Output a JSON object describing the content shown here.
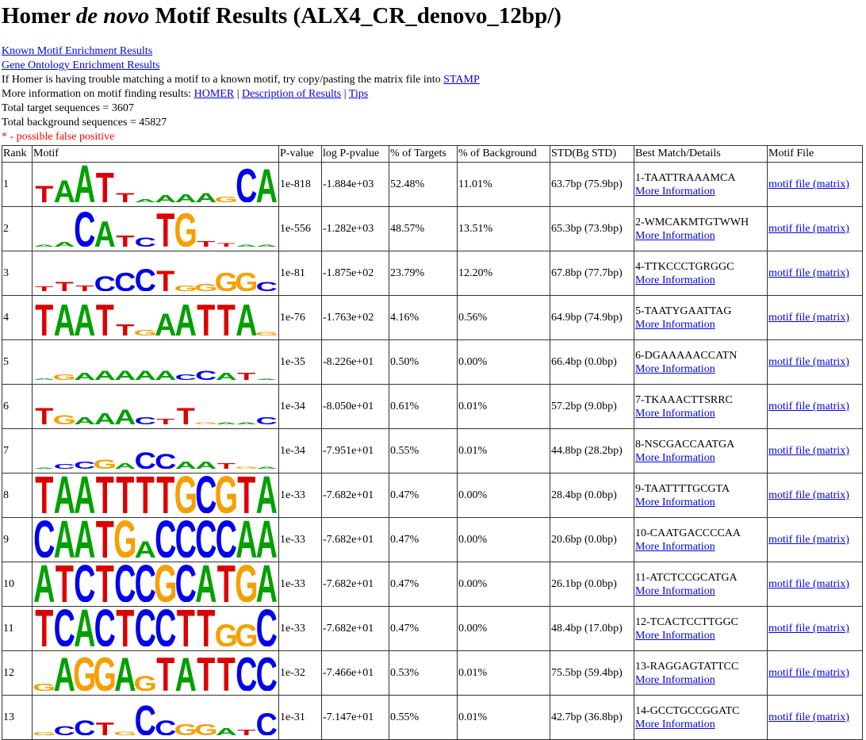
{
  "title_pre": "Homer ",
  "title_em": "de novo",
  "title_post": " Motif Results (ALX4_CR_denovo_12bp/)",
  "links": {
    "known": "Known Motif Enrichment Results",
    "go": "Gene Ontology Enrichment Results"
  },
  "stamp_text": "If Homer is having trouble matching a motif to a known motif, try copy/pasting the matrix file into ",
  "stamp_link": "STAMP",
  "more_info_text": "More information on motif finding results: ",
  "homer_link": "HOMER",
  "desc_link": "Description of Results",
  "tips_link": "Tips",
  "sep": " | ",
  "total_target": "Total target sequences = 3607",
  "total_background": "Total background sequences = 45827",
  "false_positive": "* - possible false positive",
  "headers": [
    "Rank",
    "Motif",
    "P-value",
    "log P-pvalue",
    "% of Targets",
    "% of Background",
    "STD(Bg STD)",
    "Best Match/Details",
    "Motif File"
  ],
  "more_information_label": "More Information",
  "motif_file_label": "motif file (matrix)",
  "colors": {
    "A": "#00a000",
    "C": "#0000ee",
    "G": "#f5a000",
    "T": "#dd0000"
  },
  "rows": [
    {
      "rank": "1",
      "pvalue": "1e-818",
      "logp": "-1.884e+03",
      "targets": "52.48%",
      "background": "11.01%",
      "std": "63.7bp (75.9bp)",
      "match": "1-TAATTRAAAMCA",
      "logo": [
        [
          "T",
          0.45
        ],
        [
          "A",
          0.6
        ],
        [
          "A",
          1.0
        ],
        [
          "T",
          0.8
        ],
        [
          "T",
          0.25
        ],
        [
          "A",
          0.08
        ],
        [
          "A",
          0.2
        ],
        [
          "A",
          0.22
        ],
        [
          "A",
          0.25
        ],
        [
          "G",
          0.15
        ],
        [
          "C",
          0.9
        ],
        [
          "A",
          0.9
        ]
      ]
    },
    {
      "rank": "2",
      "pvalue": "1e-556",
      "logp": "-1.282e+03",
      "targets": "48.57%",
      "background": "13.51%",
      "std": "65.3bp (73.9bp)",
      "match": "2-WMCAKMTGTWWH",
      "logo": [
        [
          "A",
          0.06
        ],
        [
          "A",
          0.12
        ],
        [
          "C",
          0.95
        ],
        [
          "A",
          0.7
        ],
        [
          "T",
          0.3
        ],
        [
          "C",
          0.25
        ],
        [
          "T",
          0.9
        ],
        [
          "G",
          0.9
        ],
        [
          "T",
          0.15
        ],
        [
          "T",
          0.1
        ],
        [
          "A",
          0.05
        ],
        [
          "A",
          0.05
        ]
      ]
    },
    {
      "rank": "3",
      "pvalue": "1e-81",
      "logp": "-1.875e+02",
      "targets": "23.79%",
      "background": "12.20%",
      "std": "67.8bp (77.7bp)",
      "match": "4-TTKCCCTGRGGC",
      "logo": [
        [
          "T",
          0.12
        ],
        [
          "T",
          0.25
        ],
        [
          "T",
          0.15
        ],
        [
          "C",
          0.4
        ],
        [
          "C",
          0.5
        ],
        [
          "C",
          0.6
        ],
        [
          "T",
          0.55
        ],
        [
          "G",
          0.15
        ],
        [
          "G",
          0.2
        ],
        [
          "G",
          0.5
        ],
        [
          "G",
          0.5
        ],
        [
          "C",
          0.25
        ]
      ]
    },
    {
      "rank": "4",
      "pvalue": "1e-76",
      "logp": "-1.763e+02",
      "targets": "4.16%",
      "background": "0.56%",
      "std": "64.9bp (74.9bp)",
      "match": "5-TAATYGAATTAG",
      "logo": [
        [
          "T",
          0.85
        ],
        [
          "A",
          0.85
        ],
        [
          "A",
          0.85
        ],
        [
          "T",
          0.85
        ],
        [
          "T",
          0.3
        ],
        [
          "G",
          0.15
        ],
        [
          "A",
          0.6
        ],
        [
          "A",
          0.85
        ],
        [
          "T",
          0.85
        ],
        [
          "T",
          0.85
        ],
        [
          "A",
          0.85
        ],
        [
          "G",
          0.1
        ]
      ]
    },
    {
      "rank": "5",
      "pvalue": "1e-35",
      "logp": "-8.226e+01",
      "targets": "0.50%",
      "background": "0.00%",
      "std": "66.4bp (0.0bp)",
      "match": "6-DGAAAAACCATN",
      "logo": [
        [
          "A",
          0.04
        ],
        [
          "G",
          0.15
        ],
        [
          "A",
          0.2
        ],
        [
          "A",
          0.25
        ],
        [
          "A",
          0.25
        ],
        [
          "A",
          0.25
        ],
        [
          "A",
          0.25
        ],
        [
          "C",
          0.15
        ],
        [
          "C",
          0.25
        ],
        [
          "A",
          0.2
        ],
        [
          "T",
          0.2
        ],
        [
          "A",
          0.02
        ]
      ]
    },
    {
      "rank": "6",
      "pvalue": "1e-34",
      "logp": "-8.050e+01",
      "targets": "0.61%",
      "background": "0.01%",
      "std": "57.2bp (9.0bp)",
      "match": "7-TKAAACTTSRRC",
      "logo": [
        [
          "T",
          0.45
        ],
        [
          "G",
          0.25
        ],
        [
          "A",
          0.2
        ],
        [
          "A",
          0.3
        ],
        [
          "A",
          0.4
        ],
        [
          "C",
          0.2
        ],
        [
          "T",
          0.15
        ],
        [
          "T",
          0.45
        ],
        [
          "G",
          0.05
        ],
        [
          "A",
          0.05
        ],
        [
          "A",
          0.05
        ],
        [
          "C",
          0.2
        ]
      ]
    },
    {
      "rank": "7",
      "pvalue": "1e-34",
      "logp": "-7.951e+01",
      "targets": "0.55%",
      "background": "0.01%",
      "std": "44.8bp (28.2bp)",
      "match": "8-NSCGACCAATGA",
      "logo": [
        [
          "A",
          0.03
        ],
        [
          "C",
          0.12
        ],
        [
          "C",
          0.2
        ],
        [
          "G",
          0.25
        ],
        [
          "A",
          0.15
        ],
        [
          "C",
          0.45
        ],
        [
          "C",
          0.4
        ],
        [
          "A",
          0.2
        ],
        [
          "A",
          0.2
        ],
        [
          "T",
          0.15
        ],
        [
          "G",
          0.05
        ],
        [
          "A",
          0.05
        ]
      ]
    },
    {
      "rank": "8",
      "pvalue": "1e-33",
      "logp": "-7.682e+01",
      "targets": "0.47%",
      "background": "0.00%",
      "std": "28.4bp (0.0bp)",
      "match": "9-TAATTTTGCGTA",
      "logo": [
        [
          "T",
          1
        ],
        [
          "A",
          1
        ],
        [
          "A",
          1
        ],
        [
          "T",
          1
        ],
        [
          "T",
          1
        ],
        [
          "T",
          1
        ],
        [
          "T",
          1
        ],
        [
          "G",
          1
        ],
        [
          "C",
          1
        ],
        [
          "G",
          1
        ],
        [
          "T",
          1
        ],
        [
          "A",
          1
        ]
      ]
    },
    {
      "rank": "9",
      "pvalue": "1e-33",
      "logp": "-7.682e+01",
      "targets": "0.47%",
      "background": "0.00%",
      "std": "20.6bp (0.0bp)",
      "match": "10-CAATGACCCCAA",
      "logo": [
        [
          "C",
          1
        ],
        [
          "A",
          1
        ],
        [
          "A",
          1
        ],
        [
          "T",
          1
        ],
        [
          "G",
          1
        ],
        [
          "A",
          0.45
        ],
        [
          "C",
          1
        ],
        [
          "C",
          1
        ],
        [
          "C",
          1
        ],
        [
          "C",
          1
        ],
        [
          "A",
          1
        ],
        [
          "A",
          1
        ]
      ]
    },
    {
      "rank": "10",
      "pvalue": "1e-33",
      "logp": "-7.682e+01",
      "targets": "0.47%",
      "background": "0.00%",
      "std": "26.1bp (0.0bp)",
      "match": "11-ATCTCCGCATGA",
      "logo": [
        [
          "A",
          1
        ],
        [
          "T",
          1
        ],
        [
          "C",
          1
        ],
        [
          "T",
          1
        ],
        [
          "C",
          1
        ],
        [
          "C",
          1
        ],
        [
          "G",
          1
        ],
        [
          "C",
          1
        ],
        [
          "A",
          1
        ],
        [
          "T",
          1
        ],
        [
          "G",
          1
        ],
        [
          "A",
          1
        ]
      ]
    },
    {
      "rank": "11",
      "pvalue": "1e-33",
      "logp": "-7.682e+01",
      "targets": "0.47%",
      "background": "0.00%",
      "std": "48.4bp (17.0bp)",
      "match": "12-TCACTCCTTGGC",
      "logo": [
        [
          "T",
          1
        ],
        [
          "C",
          1
        ],
        [
          "A",
          1
        ],
        [
          "C",
          1
        ],
        [
          "T",
          1
        ],
        [
          "C",
          1
        ],
        [
          "C",
          1
        ],
        [
          "T",
          1
        ],
        [
          "T",
          1
        ],
        [
          "G",
          0.6
        ],
        [
          "G",
          0.6
        ],
        [
          "C",
          1
        ]
      ]
    },
    {
      "rank": "12",
      "pvalue": "1e-32",
      "logp": "-7.466e+01",
      "targets": "0.53%",
      "background": "0.01%",
      "std": "75.5bp (59.4bp)",
      "match": "13-RAGGAGTATTCC",
      "logo": [
        [
          "G",
          0.2
        ],
        [
          "A",
          0.9
        ],
        [
          "G",
          0.9
        ],
        [
          "G",
          0.9
        ],
        [
          "A",
          0.9
        ],
        [
          "G",
          0.4
        ],
        [
          "T",
          0.9
        ],
        [
          "A",
          0.9
        ],
        [
          "T",
          0.9
        ],
        [
          "T",
          0.9
        ],
        [
          "C",
          0.9
        ],
        [
          "C",
          0.9
        ]
      ]
    },
    {
      "rank": "13",
      "pvalue": "1e-31",
      "logp": "-7.147e+01",
      "targets": "0.55%",
      "background": "0.01%",
      "std": "42.7bp (36.8bp)",
      "match": "14-GCCTGCCGGATC",
      "logo": [
        [
          "G",
          0.08
        ],
        [
          "C",
          0.25
        ],
        [
          "C",
          0.4
        ],
        [
          "T",
          0.35
        ],
        [
          "G",
          0.1
        ],
        [
          "C",
          0.8
        ],
        [
          "C",
          0.4
        ],
        [
          "G",
          0.3
        ],
        [
          "G",
          0.3
        ],
        [
          "A",
          0.2
        ],
        [
          "T",
          0.15
        ],
        [
          "C",
          0.6
        ]
      ]
    }
  ]
}
